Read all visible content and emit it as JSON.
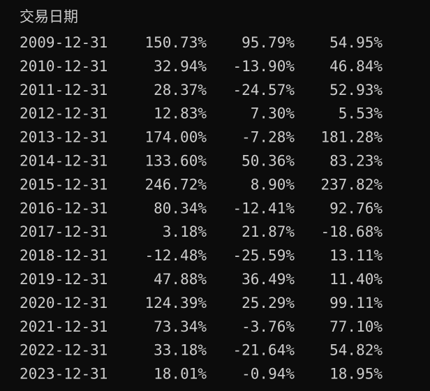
{
  "table": {
    "index_name": "交易日期",
    "rows": [
      [
        "2009-12-31",
        "150.73%",
        "95.79%",
        "54.95%"
      ],
      [
        "2010-12-31",
        "32.94%",
        "-13.90%",
        "46.84%"
      ],
      [
        "2011-12-31",
        "28.37%",
        "-24.57%",
        "52.93%"
      ],
      [
        "2012-12-31",
        "12.83%",
        "7.30%",
        "5.53%"
      ],
      [
        "2013-12-31",
        "174.00%",
        "-7.28%",
        "181.28%"
      ],
      [
        "2014-12-31",
        "133.60%",
        "50.36%",
        "83.23%"
      ],
      [
        "2015-12-31",
        "246.72%",
        "8.90%",
        "237.82%"
      ],
      [
        "2016-12-31",
        "80.34%",
        "-12.41%",
        "92.76%"
      ],
      [
        "2017-12-31",
        "3.18%",
        "21.87%",
        "-18.68%"
      ],
      [
        "2018-12-31",
        "-12.48%",
        "-25.59%",
        "13.11%"
      ],
      [
        "2019-12-31",
        "47.88%",
        "36.49%",
        "11.40%"
      ],
      [
        "2020-12-31",
        "124.39%",
        "25.29%",
        "99.11%"
      ],
      [
        "2021-12-31",
        "73.34%",
        "-3.76%",
        "77.10%"
      ],
      [
        "2022-12-31",
        "33.18%",
        "-21.64%",
        "54.82%"
      ],
      [
        "2023-12-31",
        "18.01%",
        "-0.94%",
        "18.95%"
      ]
    ]
  }
}
